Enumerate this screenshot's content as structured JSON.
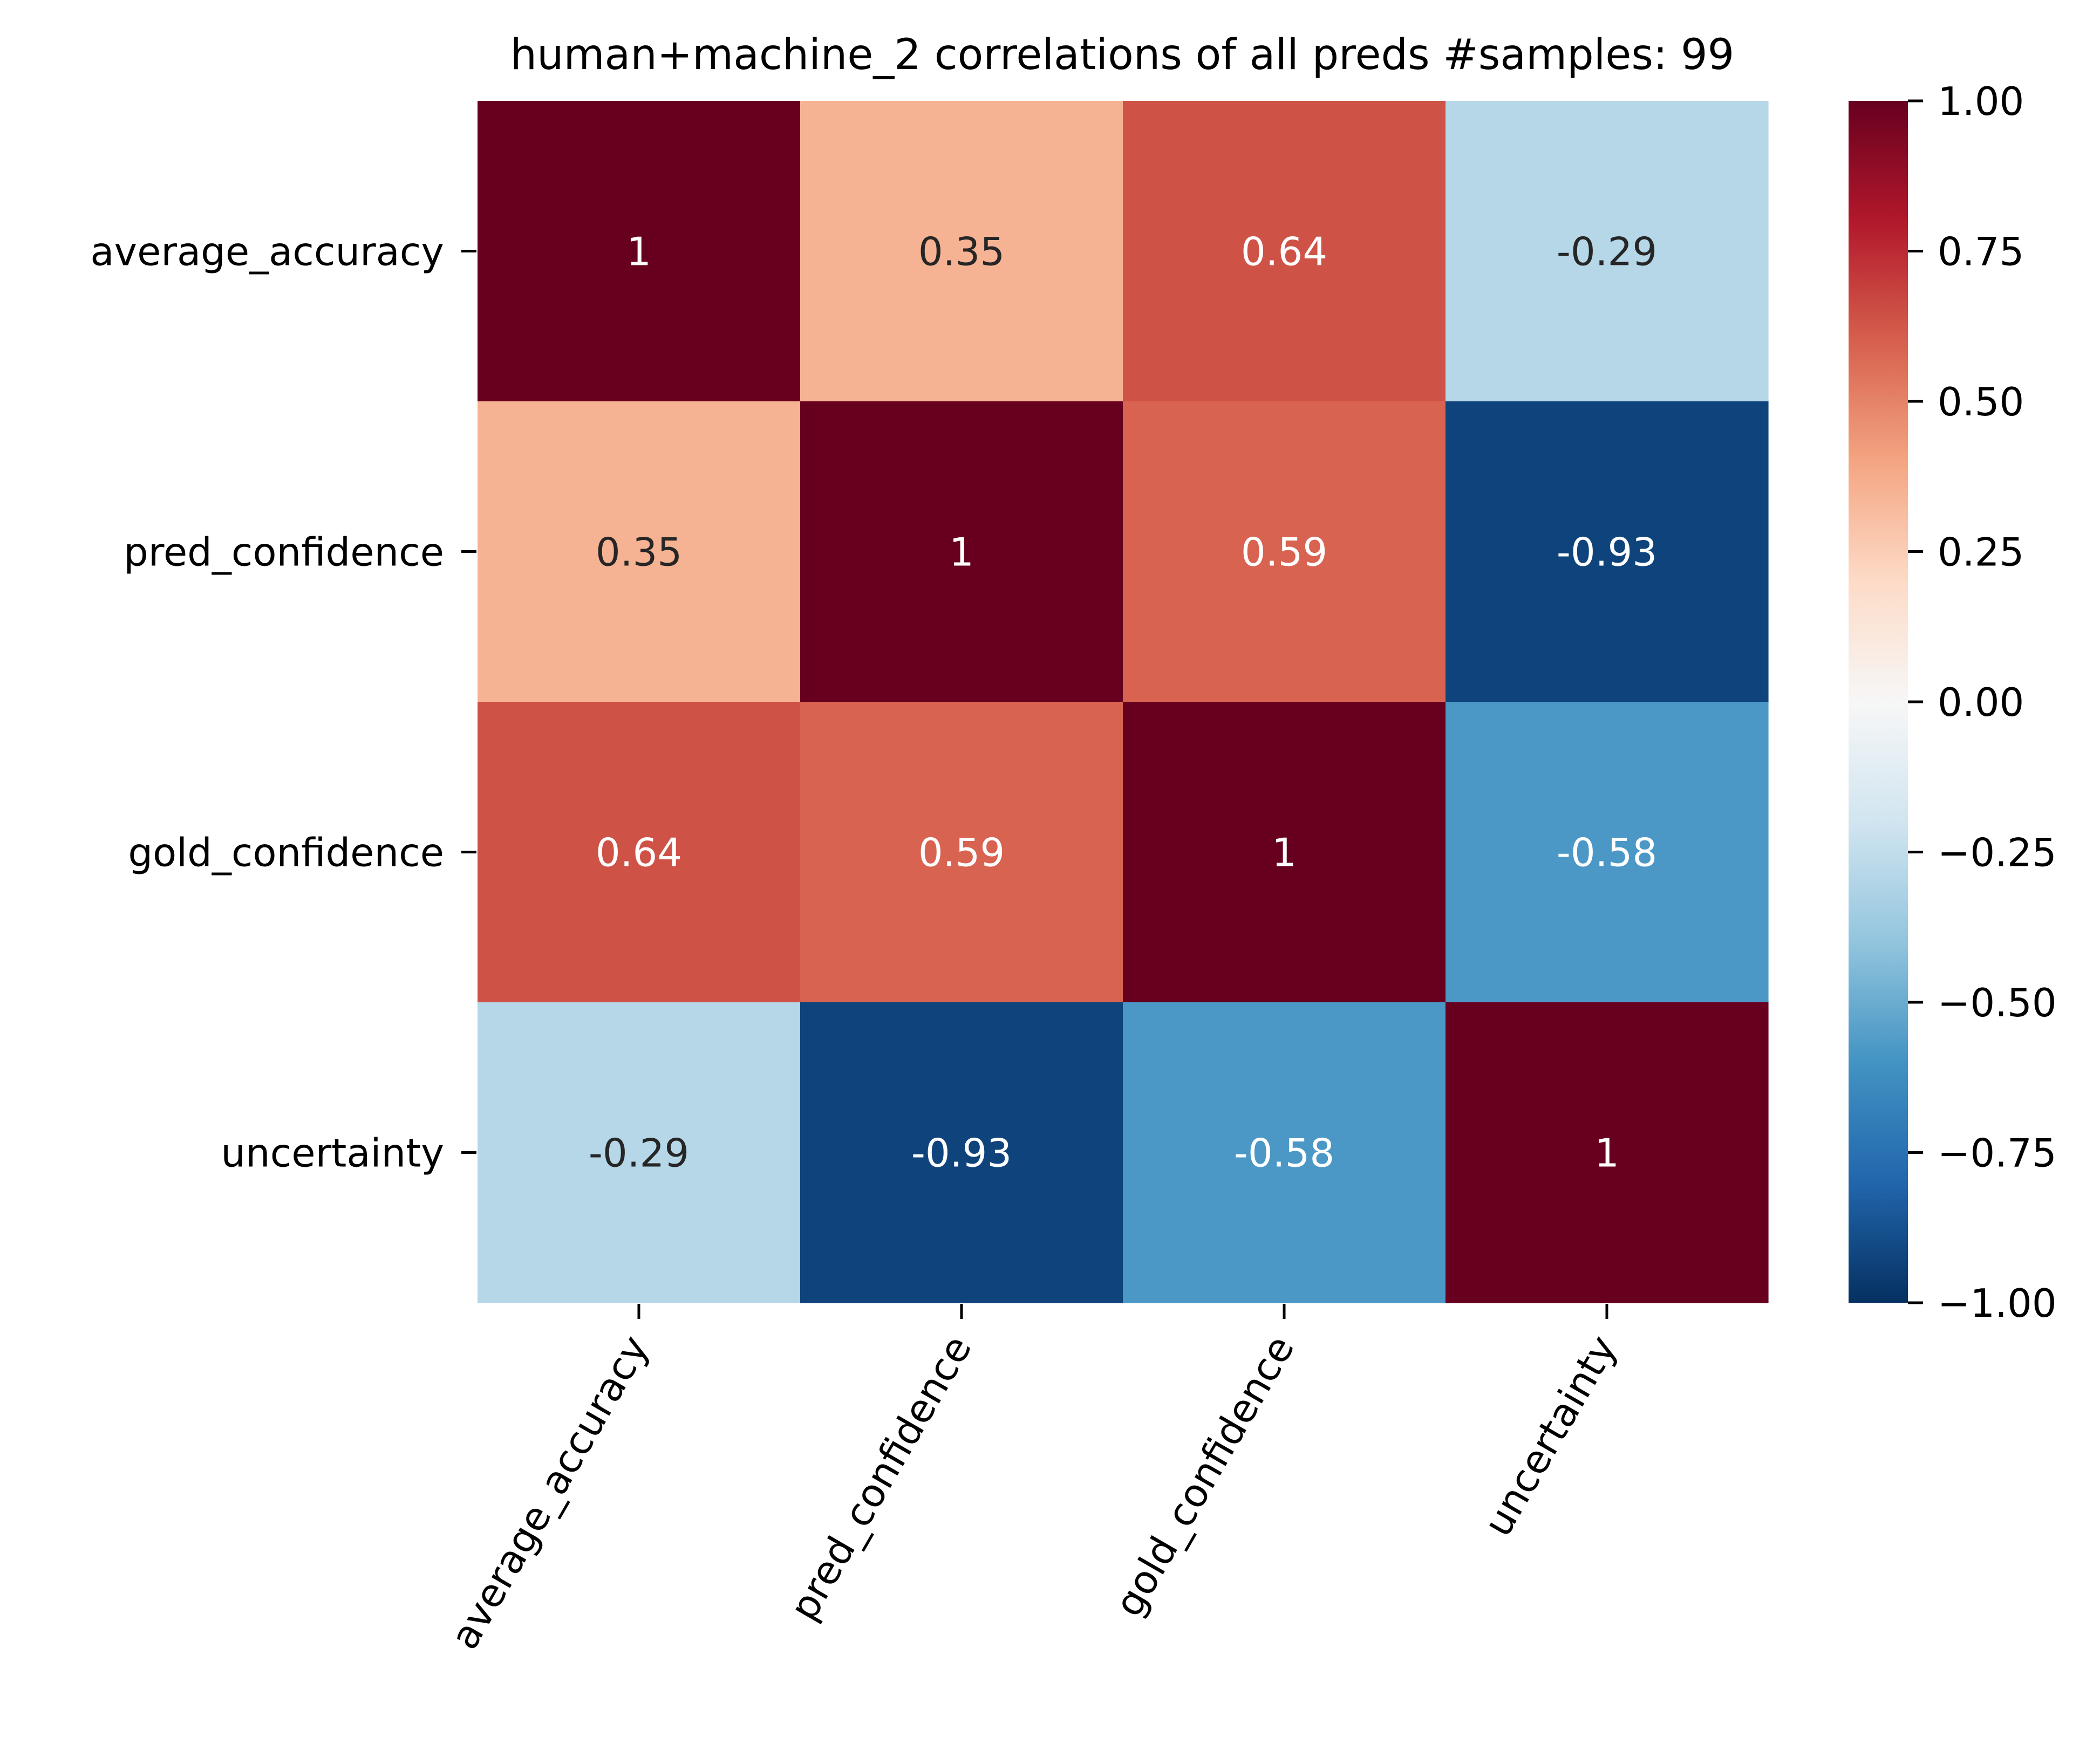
{
  "chart_data": {
    "type": "heatmap",
    "title": "human+machine_2 correlations of all preds #samples: 99",
    "rows": [
      "average_accuracy",
      "pred_confidence",
      "gold_confidence",
      "uncertainty"
    ],
    "columns": [
      "average_accuracy",
      "pred_confidence",
      "gold_confidence",
      "uncertainty"
    ],
    "values": [
      [
        1,
        0.35,
        0.64,
        -0.29
      ],
      [
        0.35,
        1,
        0.59,
        -0.93
      ],
      [
        0.64,
        0.59,
        1,
        -0.58
      ],
      [
        -0.29,
        -0.93,
        -0.58,
        1
      ]
    ],
    "annotations": [
      [
        "1",
        "0.35",
        "0.64",
        "-0.29"
      ],
      [
        "0.35",
        "1",
        "0.59",
        "-0.93"
      ],
      [
        "0.64",
        "0.59",
        "1",
        "-0.58"
      ],
      [
        "-0.29",
        "-0.93",
        "-0.58",
        "1"
      ]
    ],
    "colorbar": {
      "range": [
        -1.0,
        1.0
      ],
      "ticks": [
        1.0,
        0.75,
        0.5,
        0.25,
        0.0,
        -0.25,
        -0.5,
        -0.75,
        -1.0
      ],
      "tick_labels": [
        "1.00",
        "0.75",
        "0.50",
        "0.25",
        "0.00",
        "−0.25",
        "−0.50",
        "−0.75",
        "−1.00"
      ],
      "colormap": "RdBu_r"
    },
    "colormap_stops": [
      "#053061",
      "#2166ac",
      "#4393c3",
      "#92c5de",
      "#d1e5f0",
      "#f7f7f7",
      "#fddbc7",
      "#f4a582",
      "#d6604d",
      "#b2182b",
      "#67001f"
    ],
    "annotation_colors": {
      "dark": "#262626",
      "light": "#ffffff"
    }
  }
}
